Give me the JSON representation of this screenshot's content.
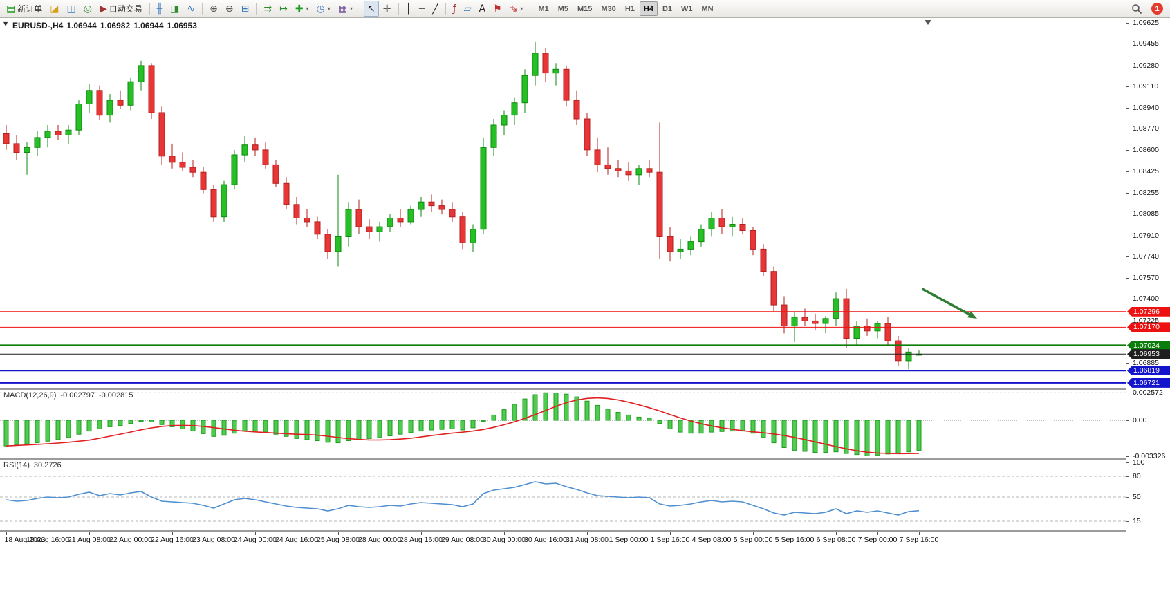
{
  "toolbar": {
    "groups": [
      {
        "items": [
          {
            "name": "new-order-button",
            "glyph": "▤",
            "color": "#1f9d1f",
            "label": "新订单"
          },
          {
            "name": "charts-menu-button",
            "glyph": "◪",
            "color": "#d4a017"
          },
          {
            "name": "market-watch-button",
            "glyph": "◫",
            "color": "#3a7abf"
          },
          {
            "name": "navigator-button",
            "glyph": "◎",
            "color": "#2e8b2e"
          },
          {
            "name": "auto-trading-button",
            "glyph": "▶",
            "color": "#a03232",
            "label": "自动交易"
          }
        ]
      },
      {
        "items": [
          {
            "name": "bar-chart-button",
            "glyph": "╫",
            "color": "#3a7abf"
          },
          {
            "name": "candlestick-chart-button",
            "glyph": "◨",
            "color": "#2e8b2e"
          },
          {
            "name": "line-chart-button",
            "glyph": "∿",
            "color": "#3a7abf"
          }
        ]
      },
      {
        "items": [
          {
            "name": "zoom-in-button",
            "glyph": "⊕",
            "color": "#555555"
          },
          {
            "name": "zoom-out-button",
            "glyph": "⊖",
            "color": "#555555"
          },
          {
            "name": "tile-windows-button",
            "glyph": "⊞",
            "color": "#3a7abf"
          }
        ]
      },
      {
        "items": [
          {
            "name": "auto-scroll-button",
            "glyph": "⇉",
            "color": "#2e8b2e"
          },
          {
            "name": "chart-shift-button",
            "glyph": "↦",
            "color": "#2e8b2e"
          },
          {
            "name": "indicators-button",
            "glyph": "✚",
            "color": "#1f9d1f",
            "caret": true
          },
          {
            "name": "periods-button",
            "glyph": "◷",
            "color": "#3a7abf",
            "caret": true
          },
          {
            "name": "templates-button",
            "glyph": "▦",
            "color": "#7a5aa0",
            "caret": true
          }
        ]
      },
      {
        "items": [
          {
            "name": "cursor-button",
            "glyph": "↖",
            "color": "#222222",
            "active": true
          },
          {
            "name": "crosshair-button",
            "glyph": "✛",
            "color": "#222222"
          }
        ]
      },
      {
        "items": [
          {
            "name": "vertical-line-button",
            "glyph": "│",
            "color": "#222222"
          },
          {
            "name": "horizontal-line-button",
            "glyph": "─",
            "color": "#222222"
          },
          {
            "name": "trendline-button",
            "glyph": "╱",
            "color": "#222222"
          }
        ]
      },
      {
        "items": [
          {
            "name": "fibonacci-button",
            "glyph": "ƒ",
            "color": "#a03232"
          },
          {
            "name": "shapes-button",
            "glyph": "▱",
            "color": "#3a7abf"
          },
          {
            "name": "text-button",
            "glyph": "A",
            "color": "#222222"
          },
          {
            "name": "label-button",
            "glyph": "⚑",
            "color": "#c03030"
          },
          {
            "name": "arrows-button",
            "glyph": "⇘",
            "color": "#c03030",
            "caret": true
          }
        ]
      }
    ],
    "timeframes": {
      "items": [
        "M1",
        "M5",
        "M15",
        "M30",
        "H1",
        "H4",
        "D1",
        "W1",
        "MN"
      ],
      "active": "H4"
    },
    "notification_count": "1"
  },
  "chart_header": {
    "collapse_glyph": "▼",
    "symbol": "EURUSD-,H4",
    "open": "1.06944",
    "high": "1.06982",
    "low": "1.06944",
    "close": "1.06953"
  },
  "indicators": {
    "macd": {
      "title": "MACD(12,26,9)",
      "value_main": "-0.002797",
      "value_signal": "-0.002815"
    },
    "rsi": {
      "title": "RSI(14)",
      "value": "30.2726"
    }
  },
  "colors": {
    "bull": "#26c026",
    "bull_border": "#0e8a0e",
    "bear": "#e83535",
    "bear_border": "#b51f1f",
    "macd_histogram": "#4fcb4f",
    "macd_histogram_border": "#1f9d1f",
    "macd_signal": "#e02020",
    "rsi_line": "#4f8fd0",
    "arrow": "#2e7d32"
  },
  "chart_data": [
    {
      "id": "price",
      "type": "candlestick",
      "symbol": "EURUSD-",
      "timeframe": "H4",
      "grid": false,
      "ylim": [
        1.06676,
        1.09664
      ],
      "y_ticks": [
        "1.09625",
        "1.09455",
        "1.09280",
        "1.09110",
        "1.08940",
        "1.08770",
        "1.08600",
        "1.08425",
        "1.08255",
        "1.08085",
        "1.07910",
        "1.07740",
        "1.07570",
        "1.07400",
        "1.07225",
        "1.06885"
      ],
      "x_labels": [
        {
          "text": "18 Aug 2023",
          "bar": 0
        },
        {
          "text": "18 Aug 16:00",
          "bar": 4
        },
        {
          "text": "21 Aug 08:00",
          "bar": 8
        },
        {
          "text": "22 Aug 00:00",
          "bar": 12
        },
        {
          "text": "22 Aug 16:00",
          "bar": 16
        },
        {
          "text": "23 Aug 08:00",
          "bar": 20
        },
        {
          "text": "24 Aug 00:00",
          "bar": 24
        },
        {
          "text": "24 Aug 16:00",
          "bar": 28
        },
        {
          "text": "25 Aug 08:00",
          "bar": 32
        },
        {
          "text": "28 Aug 00:00",
          "bar": 36
        },
        {
          "text": "28 Aug 16:00",
          "bar": 40
        },
        {
          "text": "29 Aug 08:00",
          "bar": 44
        },
        {
          "text": "30 Aug 00:00",
          "bar": 48
        },
        {
          "text": "30 Aug 16:00",
          "bar": 52
        },
        {
          "text": "31 Aug 08:00",
          "bar": 56
        },
        {
          "text": "1 Sep 00:00",
          "bar": 60
        },
        {
          "text": "1 Sep 16:00",
          "bar": 64
        },
        {
          "text": "4 Sep 08:00",
          "bar": 68
        },
        {
          "text": "5 Sep 00:00",
          "bar": 72
        },
        {
          "text": "5 Sep 16:00",
          "bar": 76
        },
        {
          "text": "6 Sep 08:00",
          "bar": 80
        },
        {
          "text": "7 Sep 00:00",
          "bar": 84
        },
        {
          "text": "7 Sep 16:00",
          "bar": 88
        }
      ],
      "candles": [
        [
          1.0873,
          1.088,
          1.086,
          1.0865
        ],
        [
          1.0865,
          1.0872,
          1.0852,
          1.0858
        ],
        [
          1.0858,
          1.0866,
          1.084,
          1.0862
        ],
        [
          1.0862,
          1.0875,
          1.0855,
          1.087
        ],
        [
          1.087,
          1.088,
          1.0862,
          1.0875
        ],
        [
          1.0875,
          1.088,
          1.0868,
          1.0872
        ],
        [
          1.0872,
          1.088,
          1.0865,
          1.0876
        ],
        [
          1.0876,
          1.09,
          1.0872,
          1.0897
        ],
        [
          1.0897,
          1.0913,
          1.089,
          1.0908
        ],
        [
          1.0908,
          1.0912,
          1.0884,
          1.0888
        ],
        [
          1.0888,
          1.0905,
          1.0882,
          1.09
        ],
        [
          1.09,
          1.0908,
          1.0893,
          1.0896
        ],
        [
          1.0896,
          1.0918,
          1.0892,
          1.0915
        ],
        [
          1.0915,
          1.0932,
          1.0908,
          1.0928
        ],
        [
          1.0928,
          1.093,
          1.0885,
          1.089
        ],
        [
          1.089,
          1.0895,
          1.0848,
          1.0855
        ],
        [
          1.0855,
          1.0865,
          1.0845,
          1.085
        ],
        [
          1.085,
          1.0858,
          1.0843,
          1.0846
        ],
        [
          1.0846,
          1.0852,
          1.0838,
          1.0842
        ],
        [
          1.0842,
          1.0846,
          1.0825,
          1.0828
        ],
        [
          1.0828,
          1.0832,
          1.0802,
          1.0806
        ],
        [
          1.0806,
          1.0835,
          1.0802,
          1.0832
        ],
        [
          1.0832,
          1.086,
          1.0828,
          1.0856
        ],
        [
          1.0856,
          1.0871,
          1.085,
          1.0864
        ],
        [
          1.0864,
          1.087,
          1.0855,
          1.086
        ],
        [
          1.086,
          1.0866,
          1.0845,
          1.0848
        ],
        [
          1.0848,
          1.0852,
          1.083,
          1.0833
        ],
        [
          1.0833,
          1.0838,
          1.0812,
          1.0816
        ],
        [
          1.0816,
          1.0822,
          1.08,
          1.0805
        ],
        [
          1.0805,
          1.0812,
          1.0798,
          1.0802
        ],
        [
          1.0802,
          1.0806,
          1.0788,
          1.0792
        ],
        [
          1.0792,
          1.0796,
          1.0772,
          1.0778
        ],
        [
          1.0778,
          1.084,
          1.0766,
          1.079
        ],
        [
          1.079,
          1.0818,
          1.0782,
          1.0812
        ],
        [
          1.0812,
          1.082,
          1.0792,
          1.0798
        ],
        [
          1.0798,
          1.0804,
          1.0788,
          1.0794
        ],
        [
          1.0794,
          1.0802,
          1.0786,
          1.0798
        ],
        [
          1.0798,
          1.0808,
          1.0794,
          1.0805
        ],
        [
          1.0805,
          1.0812,
          1.0798,
          1.0802
        ],
        [
          1.0802,
          1.0815,
          1.08,
          1.0812
        ],
        [
          1.0812,
          1.0822,
          1.0806,
          1.0818
        ],
        [
          1.0818,
          1.0824,
          1.081,
          1.0815
        ],
        [
          1.0815,
          1.082,
          1.0808,
          1.0812
        ],
        [
          1.0812,
          1.0818,
          1.0802,
          1.0806
        ],
        [
          1.0806,
          1.081,
          1.078,
          1.0785
        ],
        [
          1.0785,
          1.08,
          1.0778,
          1.0796
        ],
        [
          1.0796,
          1.087,
          1.0792,
          1.0862
        ],
        [
          1.0862,
          1.0885,
          1.0855,
          1.088
        ],
        [
          1.088,
          1.0892,
          1.0872,
          1.0888
        ],
        [
          1.0888,
          1.0902,
          1.088,
          1.0898
        ],
        [
          1.0898,
          1.0925,
          1.089,
          1.092
        ],
        [
          1.092,
          1.0947,
          1.0912,
          1.0938
        ],
        [
          1.0938,
          1.0942,
          1.0915,
          1.0922
        ],
        [
          1.0922,
          1.093,
          1.0912,
          1.0925
        ],
        [
          1.0925,
          1.0928,
          1.0895,
          1.09
        ],
        [
          1.09,
          1.0908,
          1.088,
          1.0885
        ],
        [
          1.0885,
          1.089,
          1.0855,
          1.086
        ],
        [
          1.086,
          1.087,
          1.0842,
          1.0848
        ],
        [
          1.0848,
          1.0862,
          1.084,
          1.0845
        ],
        [
          1.0845,
          1.0852,
          1.0838,
          1.0843
        ],
        [
          1.0843,
          1.085,
          1.0835,
          1.084
        ],
        [
          1.084,
          1.0848,
          1.0832,
          1.0845
        ],
        [
          1.0845,
          1.0852,
          1.0838,
          1.0842
        ],
        [
          1.0842,
          1.0882,
          1.0772,
          1.079
        ],
        [
          1.079,
          1.0798,
          1.077,
          1.0778
        ],
        [
          1.0778,
          1.0788,
          1.0772,
          1.078
        ],
        [
          1.078,
          1.079,
          1.0775,
          1.0786
        ],
        [
          1.0786,
          1.08,
          1.0782,
          1.0796
        ],
        [
          1.0796,
          1.081,
          1.079,
          1.0805
        ],
        [
          1.0805,
          1.0812,
          1.0792,
          1.0798
        ],
        [
          1.0798,
          1.0806,
          1.079,
          1.08
        ],
        [
          1.08,
          1.0805,
          1.0792,
          1.0795
        ],
        [
          1.0795,
          1.0798,
          1.0775,
          1.078
        ],
        [
          1.078,
          1.0784,
          1.0758,
          1.0762
        ],
        [
          1.0762,
          1.0766,
          1.073,
          1.0735
        ],
        [
          1.0735,
          1.0742,
          1.0712,
          1.0718
        ],
        [
          1.0718,
          1.073,
          1.0705,
          1.0725
        ],
        [
          1.0725,
          1.0732,
          1.0718,
          1.0722
        ],
        [
          1.0722,
          1.0728,
          1.0715,
          1.072
        ],
        [
          1.072,
          1.0726,
          1.0712,
          1.0724
        ],
        [
          1.0724,
          1.0745,
          1.0718,
          1.074
        ],
        [
          1.074,
          1.0748,
          1.07,
          1.0708
        ],
        [
          1.0708,
          1.0722,
          1.0702,
          1.0718
        ],
        [
          1.0718,
          1.0724,
          1.071,
          1.0714
        ],
        [
          1.0714,
          1.0722,
          1.0708,
          1.072
        ],
        [
          1.072,
          1.0725,
          1.0702,
          1.0706
        ],
        [
          1.0706,
          1.071,
          1.0686,
          1.069
        ],
        [
          1.069,
          1.07,
          1.0683,
          1.0697
        ],
        [
          1.06944,
          1.06982,
          1.06944,
          1.06953
        ]
      ],
      "hlines": [
        {
          "price": 1.07296,
          "label": "1.07296",
          "color": "#ee1111",
          "width": 1
        },
        {
          "price": 1.0717,
          "label": "1.07170",
          "color": "#ee1111",
          "width": 1
        },
        {
          "price": 1.07024,
          "label": "1.07024",
          "color": "#0b7d0b",
          "width": 2.5
        },
        {
          "price": 1.06953,
          "label": "1.06953",
          "color": "#1f1f1f",
          "width": 1
        },
        {
          "price": 1.06819,
          "label": "1.06819",
          "color": "#1414cc",
          "width": 2
        },
        {
          "price": 1.06721,
          "label": "1.06721",
          "color": "#1414cc",
          "width": 2
        }
      ],
      "current_price": 1.06953,
      "annotations": [
        {
          "type": "arrow",
          "x1_bar": 88.3,
          "price1": 1.0748,
          "x2_bar": 93.6,
          "price2": 1.0724
        }
      ]
    },
    {
      "id": "macd",
      "type": "bar",
      "name": "MACD(12,26,9)",
      "ylim": [
        -0.00355,
        0.00285
      ],
      "y_ticks": [
        {
          "text": "0.002572",
          "value": 0.002572
        },
        {
          "text": "0.00",
          "value": 0
        },
        {
          "text": "-0.003326",
          "value": -0.003326
        }
      ],
      "current_main": -0.002797,
      "current_signal": -0.002815,
      "signal_rule": "signal line = SMA(9) of main values, drawn in red",
      "values": [
        -0.0024,
        -0.0023,
        -0.0022,
        -0.0021,
        -0.00195,
        -0.0018,
        -0.0016,
        -0.0013,
        -0.001,
        -0.0008,
        -0.0006,
        -0.0005,
        -0.0003,
        -0.0001,
        -0.00015,
        -0.0004,
        -0.0006,
        -0.0008,
        -0.001,
        -0.00125,
        -0.0015,
        -0.0014,
        -0.0012,
        -0.001,
        -0.001,
        -0.0011,
        -0.0013,
        -0.0015,
        -0.0017,
        -0.0018,
        -0.0019,
        -0.00205,
        -0.0021,
        -0.0019,
        -0.0018,
        -0.0017,
        -0.0016,
        -0.00145,
        -0.0013,
        -0.00115,
        -0.001,
        -0.0009,
        -0.00085,
        -0.0008,
        -0.0009,
        -0.0007,
        -0.0001,
        0.0005,
        0.001,
        0.0015,
        0.002,
        0.0024,
        0.002572,
        0.00255,
        0.00245,
        0.0022,
        0.0018,
        0.0014,
        0.00105,
        0.00075,
        0.0005,
        0.0003,
        0.0002,
        -0.0003,
        -0.0008,
        -0.0011,
        -0.0012,
        -0.0012,
        -0.0011,
        -0.00105,
        -0.001,
        -0.001,
        -0.0012,
        -0.0016,
        -0.0021,
        -0.00255,
        -0.0028,
        -0.0029,
        -0.003,
        -0.003,
        -0.00295,
        -0.0031,
        -0.0032,
        -0.003326,
        -0.00325,
        -0.00315,
        -0.00308,
        -0.00295,
        -0.002797
      ]
    },
    {
      "id": "rsi",
      "type": "line",
      "name": "RSI(14)",
      "ylim": [
        2,
        104
      ],
      "current": 30.2726,
      "levels": [
        80,
        50,
        15
      ],
      "y_ticks": [
        {
          "text": "100",
          "value": 100
        },
        {
          "text": "80",
          "value": 80
        },
        {
          "text": "50",
          "value": 50
        },
        {
          "text": "15",
          "value": 15
        }
      ],
      "values": [
        46,
        44,
        45,
        48,
        50,
        49,
        50,
        54,
        57,
        52,
        55,
        53,
        56,
        58,
        50,
        44,
        43,
        42,
        41,
        38,
        34,
        40,
        46,
        48,
        46,
        43,
        40,
        37,
        35,
        34,
        33,
        30,
        33,
        38,
        36,
        35,
        36,
        38,
        37,
        40,
        42,
        41,
        40,
        39,
        36,
        40,
        55,
        60,
        62,
        64,
        68,
        72,
        69,
        70,
        65,
        61,
        56,
        52,
        51,
        50,
        49,
        50,
        49,
        40,
        37,
        38,
        40,
        43,
        45,
        43,
        44,
        43,
        38,
        33,
        27,
        24,
        28,
        27,
        26,
        28,
        33,
        26,
        30,
        28,
        30,
        27,
        24,
        29,
        30.27
      ]
    }
  ]
}
